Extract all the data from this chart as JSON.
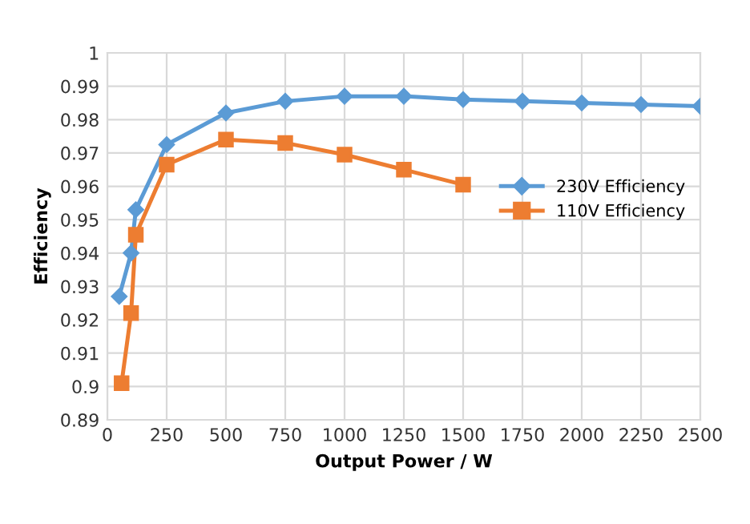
{
  "chart_data": {
    "type": "line",
    "xlabel": "Output Power / W",
    "ylabel": "Efficiency",
    "series": [
      {
        "name": "230V Efficiency",
        "color": "#5b9bd5",
        "marker": "diamond",
        "x": [
          50,
          100,
          120,
          250,
          500,
          750,
          1000,
          1250,
          1500,
          1750,
          2000,
          2250,
          2500
        ],
        "values": [
          0.927,
          0.94,
          0.953,
          0.9725,
          0.982,
          0.9855,
          0.987,
          0.987,
          0.986,
          0.9855,
          0.985,
          0.9845,
          0.984
        ]
      },
      {
        "name": "110V Efficiency",
        "color": "#ed7d31",
        "marker": "square",
        "x": [
          60,
          100,
          120,
          250,
          500,
          750,
          1000,
          1250,
          1500
        ],
        "values": [
          0.901,
          0.922,
          0.9455,
          0.9665,
          0.974,
          0.973,
          0.9695,
          0.965,
          0.9605
        ]
      }
    ],
    "xlim": [
      0,
      2500
    ],
    "xticks": [
      0,
      250,
      500,
      750,
      1000,
      1250,
      1500,
      1750,
      2000,
      2250,
      2500
    ],
    "ylim": [
      0.89,
      1
    ],
    "yticks": [
      0.89,
      0.9,
      0.91,
      0.92,
      0.93,
      0.94,
      0.95,
      0.96,
      0.97,
      0.98,
      0.99,
      1
    ],
    "grid": true,
    "legend": "right"
  }
}
